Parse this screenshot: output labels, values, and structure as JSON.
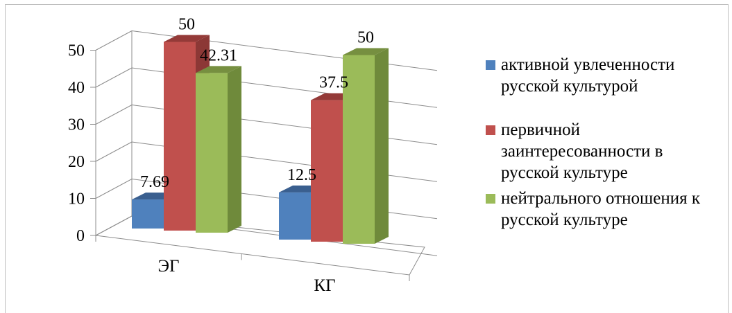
{
  "chart_data": {
    "type": "bar",
    "categories": [
      "ЭГ",
      "КГ"
    ],
    "series": [
      {
        "name": "активной увлеченности русской культурой",
        "values": [
          7.69,
          12.5
        ],
        "color": "#4f81bd",
        "side": "#385d8a",
        "top": "#3a5f8f"
      },
      {
        "name": "первичной заинтересованности в русской культуре",
        "values": [
          50,
          37.5
        ],
        "color": "#c0504d",
        "side": "#8c3836",
        "top": "#943a38"
      },
      {
        "name": "нейтрального отношения к русской культуре",
        "values": [
          42.31,
          50
        ],
        "color": "#9bbb59",
        "side": "#6f8a3b",
        "top": "#768f40"
      }
    ],
    "data_labels": [
      [
        "7.69",
        "12.5"
      ],
      [
        "50",
        "37.5"
      ],
      [
        "42.31",
        "50"
      ]
    ],
    "ylim": [
      0,
      50
    ],
    "yticks": [
      "0",
      "10",
      "20",
      "30",
      "40",
      "50"
    ],
    "grid": true,
    "legend_position": "right",
    "projection": "3d"
  }
}
